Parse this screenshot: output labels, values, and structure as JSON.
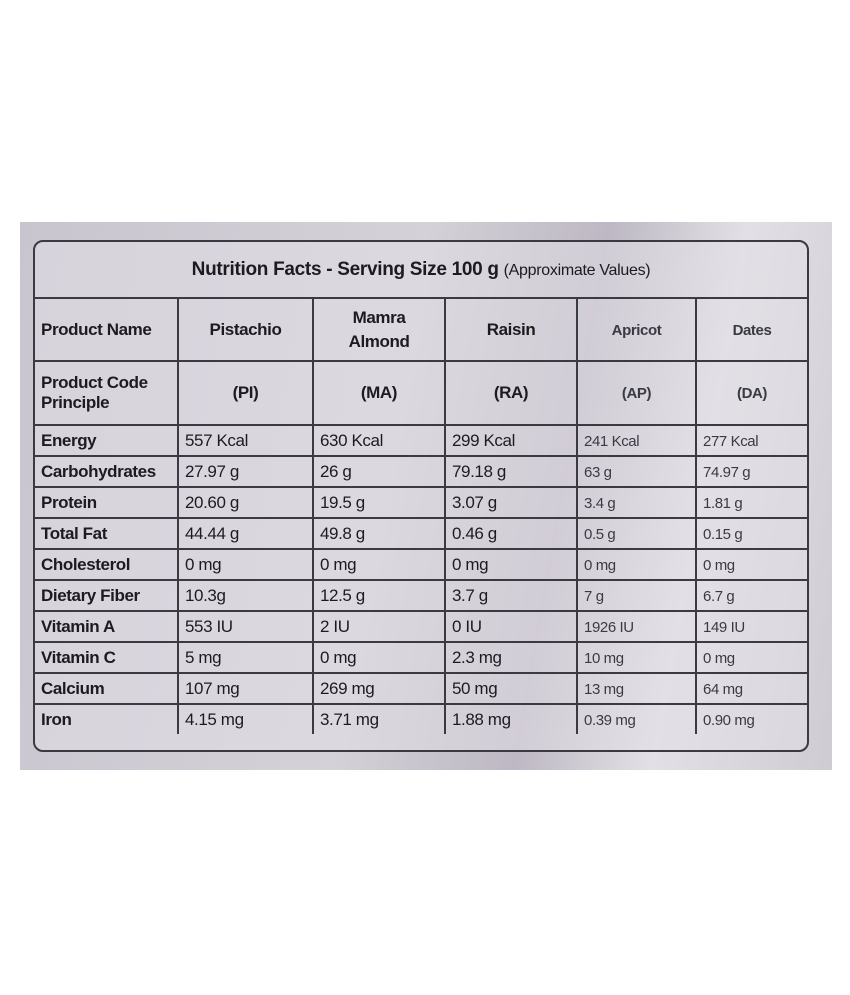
{
  "title": {
    "main": "Nutrition Facts  - Serving Size 100 g",
    "note": "(Approximate Values)"
  },
  "table": {
    "header": [
      "Product Name",
      "Pistachio",
      "Mamra Almond",
      "Raisin",
      "Apricot",
      "Dates"
    ],
    "codes": [
      "Product Code Principle",
      "(PI)",
      "(MA)",
      "(RA)",
      "(AP)",
      "(DA)"
    ],
    "rows": [
      [
        "Energy",
        "557 Kcal",
        "630 Kcal",
        "299 Kcal",
        "241 Kcal",
        "277 Kcal"
      ],
      [
        "Carbohydrates",
        "27.97 g",
        "26 g",
        "79.18 g",
        "63 g",
        "74.97 g"
      ],
      [
        "Protein",
        "20.60 g",
        "19.5 g",
        "3.07 g",
        "3.4 g",
        "1.81 g"
      ],
      [
        "Total Fat",
        "44.44 g",
        "49.8 g",
        "0.46 g",
        "0.5 g",
        "0.15 g"
      ],
      [
        "Cholesterol",
        "0 mg",
        "0 mg",
        "0 mg",
        "0 mg",
        "0 mg"
      ],
      [
        "Dietary Fiber",
        "10.3g",
        "12.5 g",
        "3.7 g",
        "7 g",
        "6.7 g"
      ],
      [
        "Vitamin A",
        "553 IU",
        "2 IU",
        "0 IU",
        "1926 IU",
        "149 IU"
      ],
      [
        "Vitamin C",
        "5 mg",
        "0 mg",
        "2.3 mg",
        "10 mg",
        "0 mg"
      ],
      [
        "Calcium",
        "107 mg",
        "269 mg",
        "50 mg",
        "13 mg",
        "64 mg"
      ],
      [
        "Iron",
        "4.15 mg",
        "3.71 mg",
        "1.88 mg",
        "0.39 mg",
        "0.90 mg"
      ]
    ]
  }
}
